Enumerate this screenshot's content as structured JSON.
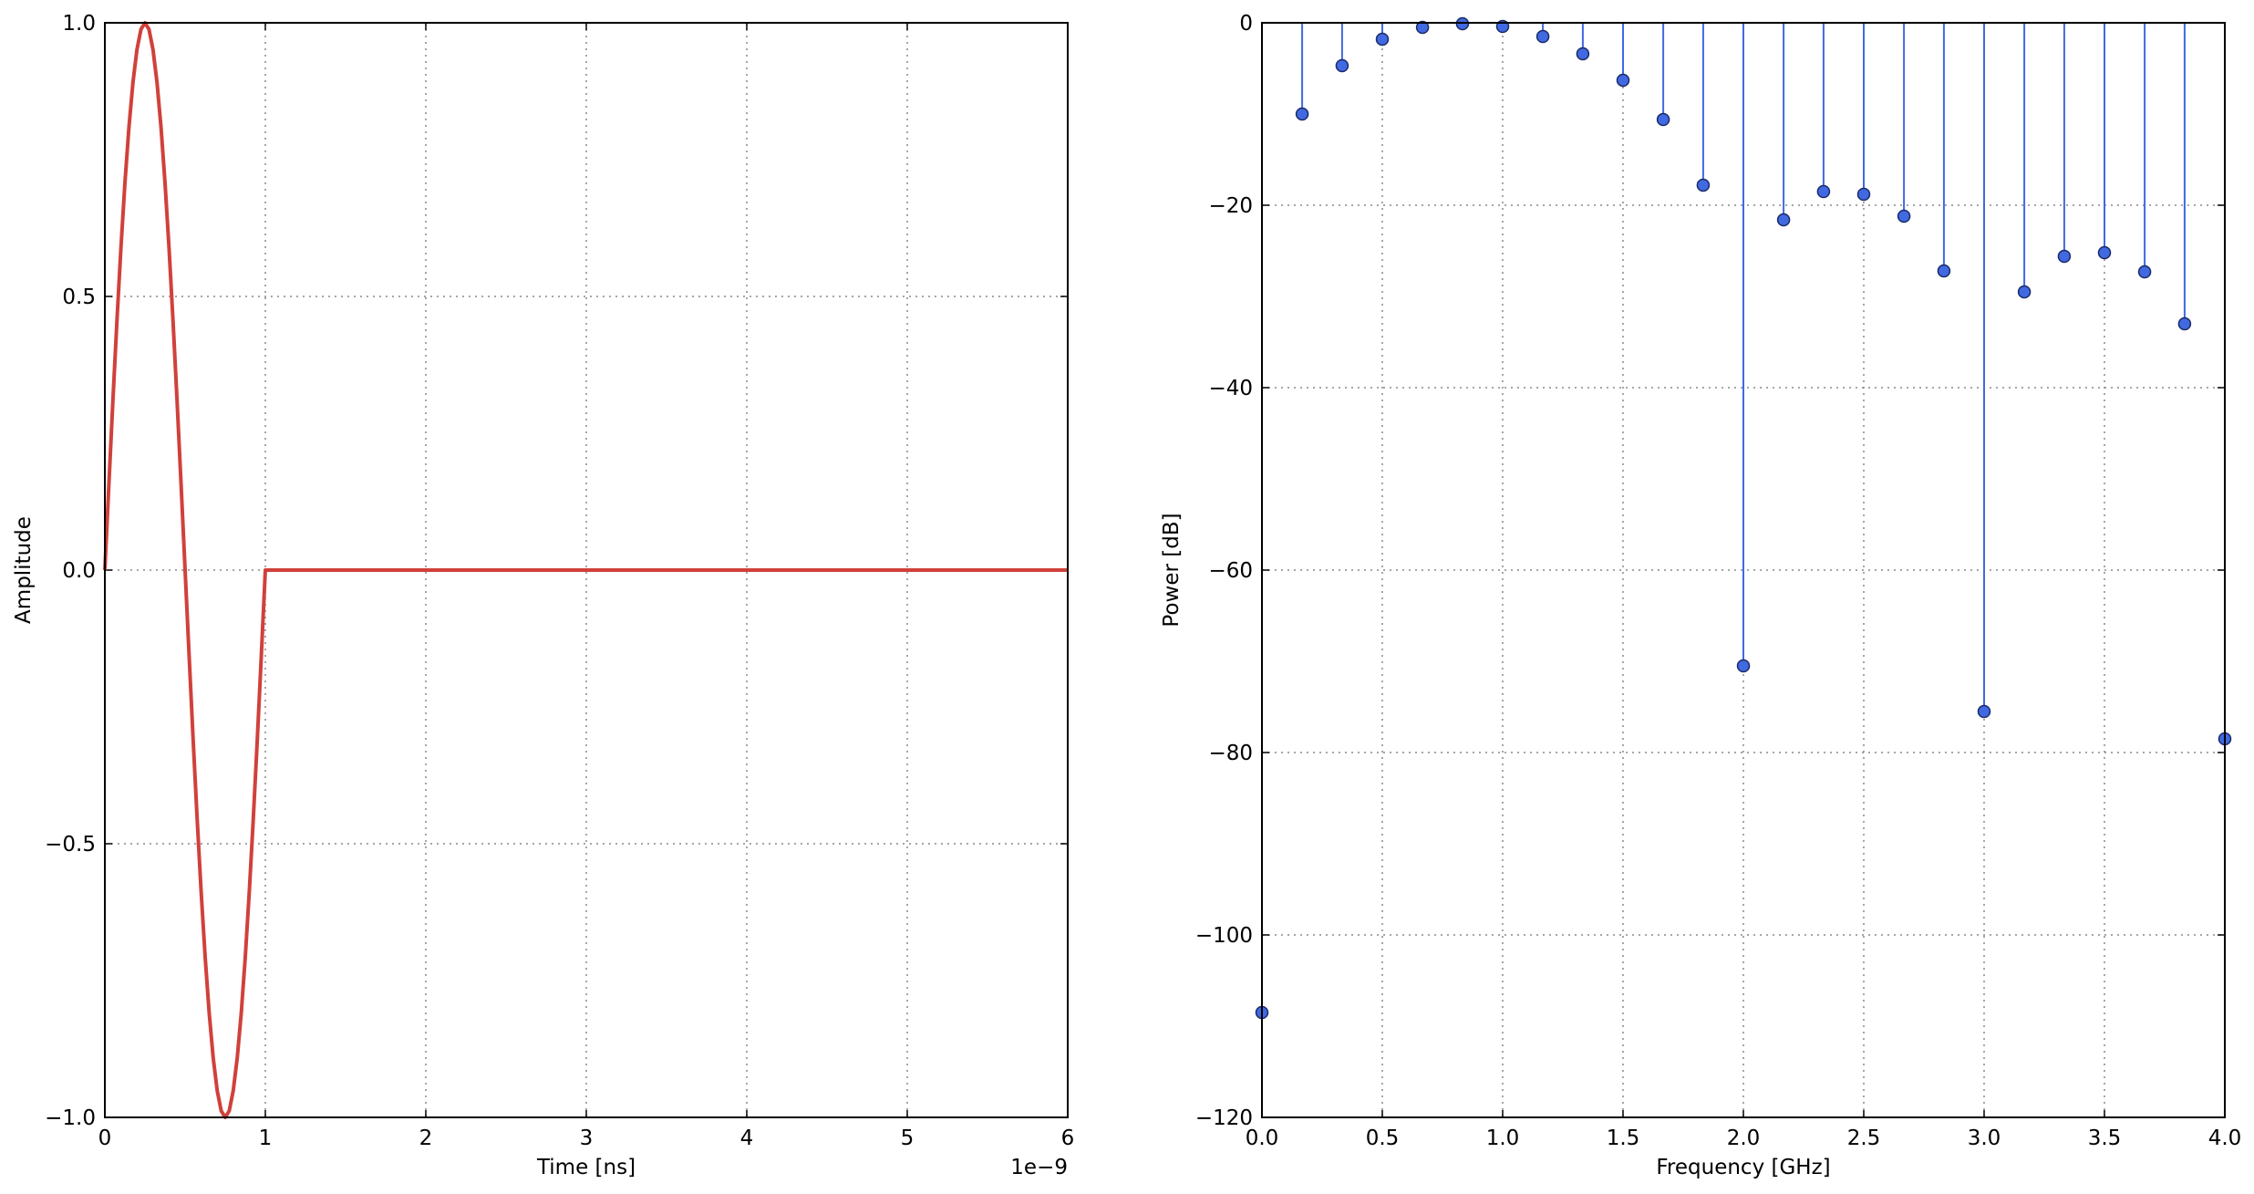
{
  "chart_data": [
    {
      "type": "line",
      "xlabel": "Time [ns]",
      "ylabel": "Amplitude",
      "x_offset_label": "1e−9",
      "x": [
        0,
        0.025,
        0.05,
        0.075,
        0.1,
        0.125,
        0.15,
        0.175,
        0.2,
        0.225,
        0.25,
        0.275,
        0.3,
        0.325,
        0.35,
        0.375,
        0.4,
        0.425,
        0.45,
        0.475,
        0.5,
        0.525,
        0.55,
        0.575,
        0.6,
        0.625,
        0.65,
        0.675,
        0.7,
        0.725,
        0.75,
        0.775,
        0.8,
        0.825,
        0.85,
        0.875,
        0.9,
        0.925,
        0.95,
        0.975,
        1.0,
        6
      ],
      "values": [
        0,
        0.156,
        0.309,
        0.454,
        0.588,
        0.707,
        0.809,
        0.891,
        0.951,
        0.988,
        1,
        0.988,
        0.951,
        0.891,
        0.809,
        0.707,
        0.588,
        0.454,
        0.309,
        0.156,
        0,
        -0.156,
        -0.309,
        -0.454,
        -0.588,
        -0.707,
        -0.809,
        -0.891,
        -0.951,
        -0.988,
        -1,
        -0.988,
        -0.951,
        -0.891,
        -0.809,
        -0.707,
        -0.588,
        -0.454,
        -0.309,
        -0.156,
        0,
        0
      ],
      "color": "#d0413a",
      "xlim": [
        0,
        6
      ],
      "xticks": [
        0,
        1,
        2,
        3,
        4,
        5,
        6
      ],
      "ylim": [
        -1,
        1
      ],
      "yticks": [
        {
          "value": -1,
          "label": "−1.0"
        },
        {
          "value": -0.5,
          "label": "−0.5"
        },
        {
          "value": 0,
          "label": "0.0"
        },
        0.5,
        {
          "value": 1,
          "label": "1.0"
        }
      ],
      "grid": true
    },
    {
      "type": "stem",
      "xlabel": "Frequency [GHz]",
      "ylabel": "Power [dB]",
      "x": [
        0,
        0.167,
        0.333,
        0.5,
        0.667,
        0.833,
        1.0,
        1.167,
        1.333,
        1.5,
        1.667,
        1.833,
        2.0,
        2.167,
        2.333,
        2.5,
        2.667,
        2.833,
        3.0,
        3.167,
        3.333,
        3.5,
        3.667,
        3.833,
        4.0
      ],
      "values": [
        -108.5,
        -10,
        -4.7,
        -1.8,
        -0.5,
        -0.1,
        -0.4,
        -1.5,
        -3.4,
        -6.3,
        -10.6,
        -17.8,
        -70.5,
        -21.6,
        -18.5,
        -18.8,
        -21.2,
        -27.2,
        -75.5,
        -29.5,
        -25.6,
        -25.2,
        -27.3,
        -33,
        -78.5
      ],
      "color": "#4169e1",
      "xlim": [
        0,
        4
      ],
      "xticks": [
        {
          "value": 0,
          "label": "0.0"
        },
        0.5,
        {
          "value": 1,
          "label": "1.0"
        },
        1.5,
        {
          "value": 2,
          "label": "2.0"
        },
        2.5,
        {
          "value": 3,
          "label": "3.0"
        },
        3.5,
        {
          "value": 4,
          "label": "4.0"
        }
      ],
      "ylim": [
        -120,
        0
      ],
      "yticks": [
        {
          "value": -120,
          "label": "−120"
        },
        {
          "value": -100,
          "label": "−100"
        },
        {
          "value": -80,
          "label": "−80"
        },
        {
          "value": -60,
          "label": "−60"
        },
        {
          "value": -40,
          "label": "−40"
        },
        {
          "value": -20,
          "label": "−20"
        },
        0
      ],
      "grid": true
    }
  ]
}
